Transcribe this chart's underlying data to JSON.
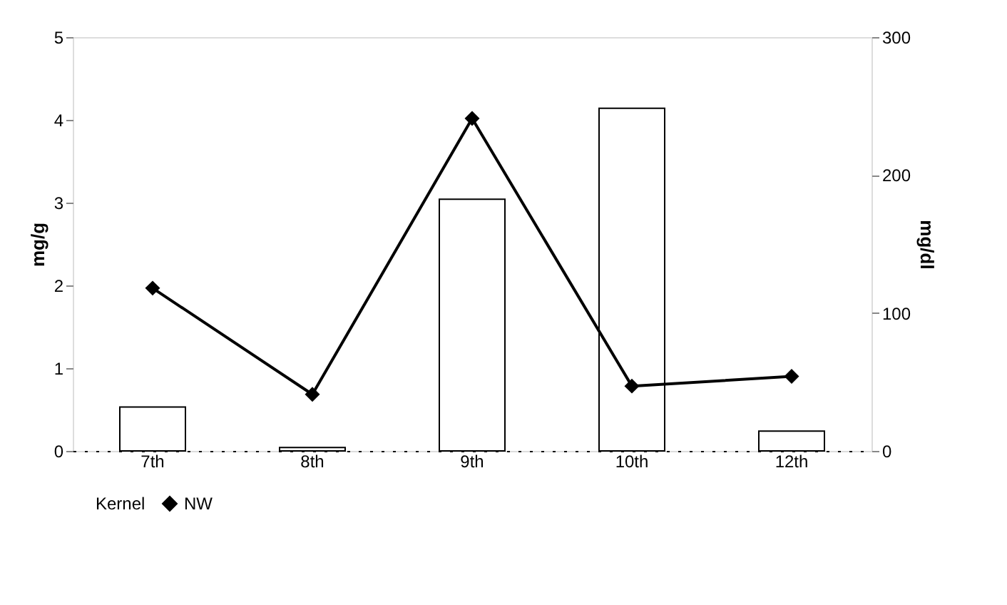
{
  "chart_data": {
    "type": "bar",
    "categories": [
      "7th",
      "8th",
      "9th",
      "10th",
      "12th"
    ],
    "ylabel": "mg/g",
    "y2label": "mg/dl",
    "ylim": [
      0,
      5
    ],
    "yticks": [
      0,
      1,
      2,
      3,
      4,
      5
    ],
    "y2lim": [
      0,
      300
    ],
    "y2ticks": [
      0,
      100,
      200,
      300
    ],
    "legend": "bottom",
    "grid": false,
    "series": [
      {
        "name": "Kernel",
        "color": "#ffffff",
        "values": [
          0.53,
          0.04,
          3.04,
          4.14,
          0.24
        ]
      },
      {
        "name": "NW",
        "type": "line",
        "axis": "y2",
        "color": "#000000",
        "marker": "diamond",
        "line_style": "solid",
        "values": [
          118,
          41,
          241,
          47,
          54
        ]
      }
    ]
  }
}
